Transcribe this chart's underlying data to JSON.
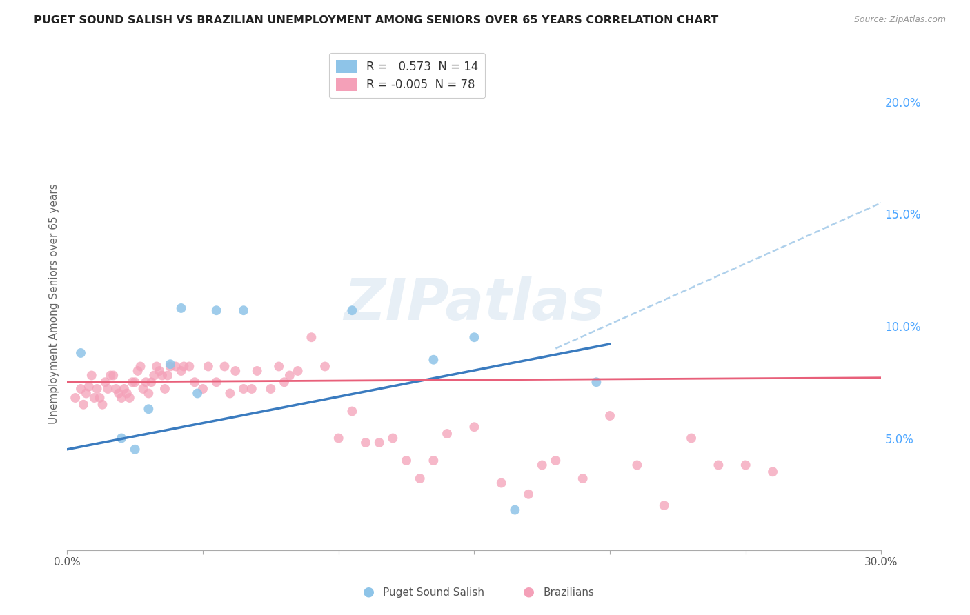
{
  "title": "PUGET SOUND SALISH VS BRAZILIAN UNEMPLOYMENT AMONG SENIORS OVER 65 YEARS CORRELATION CHART",
  "source": "Source: ZipAtlas.com",
  "ylabel": "Unemployment Among Seniors over 65 years",
  "xlim": [
    0.0,
    0.3
  ],
  "ylim": [
    0.0,
    0.22
  ],
  "xtick_positions": [
    0.0,
    0.05,
    0.1,
    0.15,
    0.2,
    0.25,
    0.3
  ],
  "xtick_labels": [
    "0.0%",
    "",
    "",
    "",
    "",
    "",
    "30.0%"
  ],
  "yticks_right": [
    0.05,
    0.1,
    0.15,
    0.2
  ],
  "ytick_labels_right": [
    "5.0%",
    "10.0%",
    "15.0%",
    "20.0%"
  ],
  "puget_color": "#8ec4e8",
  "brazil_color": "#f4a0b8",
  "puget_line_color": "#3a7bbf",
  "brazil_line_color": "#e8607a",
  "puget_dash_color": "#a0c8e8",
  "puget_R": 0.573,
  "puget_N": 14,
  "brazil_R": -0.005,
  "brazil_N": 78,
  "watermark": "ZIPatlas",
  "background_color": "#ffffff",
  "grid_color": "#d0d0d0",
  "puget_scatter_x": [
    0.005,
    0.02,
    0.025,
    0.03,
    0.038,
    0.042,
    0.048,
    0.055,
    0.065,
    0.105,
    0.15,
    0.165,
    0.195,
    0.135
  ],
  "puget_scatter_y": [
    0.088,
    0.05,
    0.045,
    0.063,
    0.083,
    0.108,
    0.07,
    0.107,
    0.107,
    0.107,
    0.095,
    0.018,
    0.075,
    0.085
  ],
  "brazil_scatter_x": [
    0.003,
    0.005,
    0.006,
    0.007,
    0.008,
    0.009,
    0.01,
    0.011,
    0.012,
    0.013,
    0.014,
    0.015,
    0.016,
    0.017,
    0.018,
    0.019,
    0.02,
    0.021,
    0.022,
    0.023,
    0.024,
    0.025,
    0.026,
    0.027,
    0.028,
    0.029,
    0.03,
    0.031,
    0.032,
    0.033,
    0.034,
    0.035,
    0.036,
    0.037,
    0.038,
    0.04,
    0.042,
    0.043,
    0.045,
    0.047,
    0.05,
    0.052,
    0.055,
    0.058,
    0.06,
    0.062,
    0.065,
    0.068,
    0.07,
    0.075,
    0.078,
    0.08,
    0.082,
    0.085,
    0.09,
    0.095,
    0.1,
    0.105,
    0.11,
    0.115,
    0.12,
    0.125,
    0.13,
    0.135,
    0.14,
    0.15,
    0.16,
    0.17,
    0.175,
    0.18,
    0.19,
    0.2,
    0.21,
    0.22,
    0.23,
    0.24,
    0.25,
    0.26
  ],
  "brazil_scatter_y": [
    0.068,
    0.072,
    0.065,
    0.07,
    0.073,
    0.078,
    0.068,
    0.072,
    0.068,
    0.065,
    0.075,
    0.072,
    0.078,
    0.078,
    0.072,
    0.07,
    0.068,
    0.072,
    0.07,
    0.068,
    0.075,
    0.075,
    0.08,
    0.082,
    0.072,
    0.075,
    0.07,
    0.075,
    0.078,
    0.082,
    0.08,
    0.078,
    0.072,
    0.078,
    0.082,
    0.082,
    0.08,
    0.082,
    0.082,
    0.075,
    0.072,
    0.082,
    0.075,
    0.082,
    0.07,
    0.08,
    0.072,
    0.072,
    0.08,
    0.072,
    0.082,
    0.075,
    0.078,
    0.08,
    0.095,
    0.082,
    0.05,
    0.062,
    0.048,
    0.048,
    0.05,
    0.04,
    0.032,
    0.04,
    0.052,
    0.055,
    0.03,
    0.025,
    0.038,
    0.04,
    0.032,
    0.06,
    0.038,
    0.02,
    0.05,
    0.038,
    0.038,
    0.035
  ],
  "puget_line_x0": 0.0,
  "puget_line_y0": 0.045,
  "puget_line_x1": 0.2,
  "puget_line_y1": 0.092,
  "brazil_line_x0": 0.0,
  "brazil_line_y0": 0.075,
  "brazil_line_x1": 0.3,
  "brazil_line_y1": 0.077,
  "dash_line_x0": 0.18,
  "dash_line_y0": 0.09,
  "dash_line_x1": 0.3,
  "dash_line_y1": 0.155
}
